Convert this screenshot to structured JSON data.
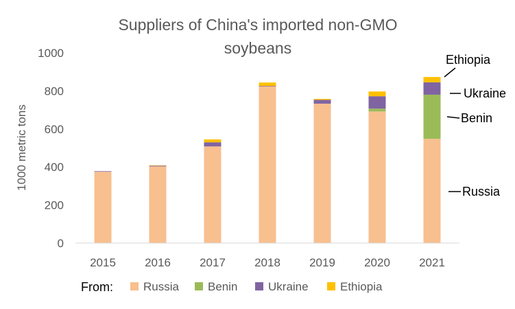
{
  "chart_data": {
    "type": "bar",
    "stacked": true,
    "title_line1": "Suppliers of China's imported non-GMO",
    "title_line2": "soybeans",
    "ylabel": "1000 metric tons",
    "xlabel": "",
    "ylim": [
      0,
      1000
    ],
    "yticks": [
      0,
      200,
      400,
      600,
      800,
      1000
    ],
    "grid": false,
    "categories": [
      "2015",
      "2016",
      "2017",
      "2018",
      "2019",
      "2020",
      "2021"
    ],
    "series": [
      {
        "name": "Russia",
        "color": "#F8BF8F",
        "values": [
          375,
          403,
          508,
          823,
          733,
          692,
          548
        ]
      },
      {
        "name": "Benin",
        "color": "#9BBB59",
        "values": [
          0,
          0,
          0,
          0,
          0,
          15,
          232
        ]
      },
      {
        "name": "Ukraine",
        "color": "#8064A2",
        "values": [
          3,
          4,
          22,
          3,
          20,
          65,
          65
        ]
      },
      {
        "name": "Ethiopia",
        "color": "#FFC000",
        "values": [
          0,
          2,
          15,
          18,
          5,
          25,
          28
        ]
      }
    ],
    "legend_prefix": "From:",
    "legend_position": "bottom",
    "annotations": [
      {
        "text": "Ethiopia",
        "category": "2021",
        "series": "Ethiopia"
      },
      {
        "text": "Ukraine",
        "category": "2021",
        "series": "Ukraine"
      },
      {
        "text": "Benin",
        "category": "2021",
        "series": "Benin"
      },
      {
        "text": "Russia",
        "category": "2021",
        "series": "Russia"
      }
    ]
  }
}
